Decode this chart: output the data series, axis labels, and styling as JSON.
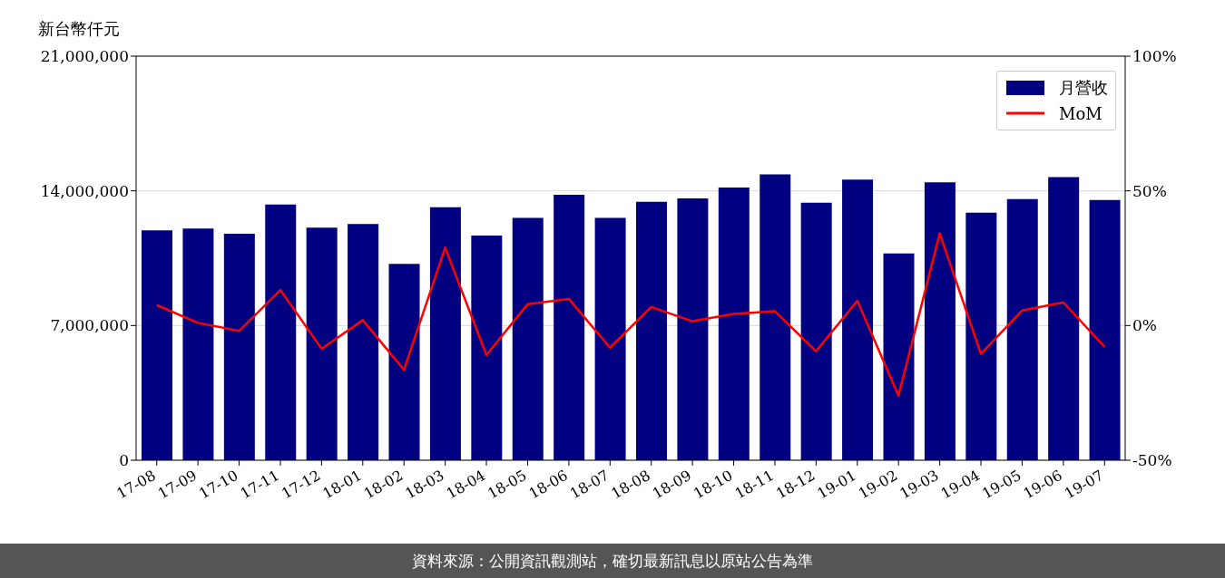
{
  "chart_data": {
    "type": "bar",
    "ylabel": "新台幣仟元",
    "categories": [
      "17-08",
      "17-09",
      "17-10",
      "17-11",
      "17-12",
      "18-01",
      "18-02",
      "18-03",
      "18-04",
      "18-05",
      "18-06",
      "18-07",
      "18-08",
      "18-09",
      "18-10",
      "18-11",
      "18-12",
      "19-01",
      "19-02",
      "19-03",
      "19-04",
      "19-05",
      "19-06",
      "19-07"
    ],
    "series": [
      {
        "name": "月營收",
        "color": "#000080",
        "values": [
          11950000,
          12040000,
          11770000,
          13290000,
          12090000,
          12280000,
          10200000,
          13150000,
          11680000,
          12600000,
          13800000,
          12600000,
          13430000,
          13610000,
          14170000,
          14860000,
          13380000,
          14580000,
          10750000,
          14440000,
          12870000,
          13570000,
          14720000,
          13520000
        ]
      },
      {
        "name": "MoM",
        "type": "line",
        "axis": "y2",
        "color": "#ff0000",
        "values": [
          7.6,
          1.0,
          -2.0,
          13.2,
          -8.6,
          2.0,
          -16.4,
          28.9,
          -10.9,
          7.9,
          9.9,
          -8.2,
          6.9,
          1.6,
          4.3,
          5.3,
          -9.5,
          9.2,
          -26.0,
          34.2,
          -10.5,
          5.6,
          8.6,
          -7.9
        ]
      }
    ],
    "ylim": [
      0,
      21000000
    ],
    "yticks": [
      {
        "value": 0,
        "label": "0"
      },
      {
        "value": 7000000,
        "label": "7,000,000"
      },
      {
        "value": 14000000,
        "label": "14,000,000"
      },
      {
        "value": 21000000,
        "label": "21,000,000"
      }
    ],
    "y2lim": [
      -50,
      100
    ],
    "y2ticks": [
      {
        "value": -50,
        "label": "-50%"
      },
      {
        "value": 0,
        "label": "0%"
      },
      {
        "value": 50,
        "label": "50%"
      },
      {
        "value": 100,
        "label": "100%"
      }
    ],
    "grid": "y",
    "legend": "top right",
    "marker": "none",
    "line_style": "solid",
    "annotations": [
      "資料來源：公開資訊觀測站，確切最新訊息以原站公告為準"
    ]
  }
}
